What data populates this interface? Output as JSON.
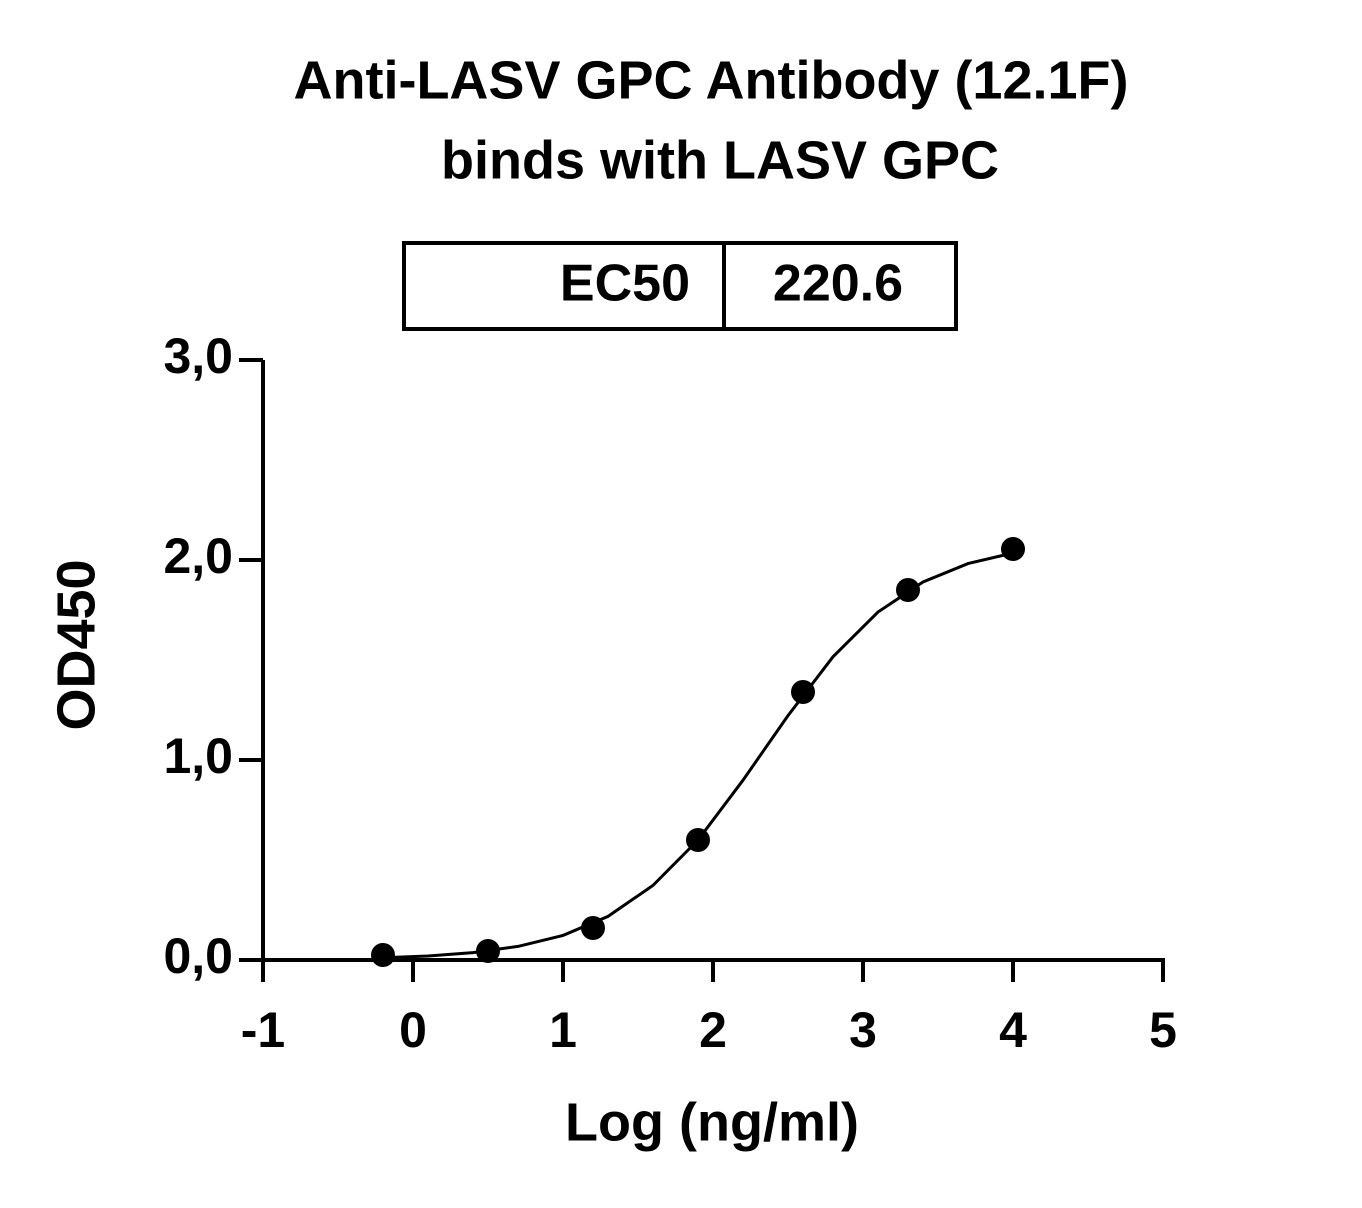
{
  "chart_data": {
    "type": "scatter",
    "title": [
      "Anti-LASV GPC Antibody (12.1F)",
      "binds with LASV GPC"
    ],
    "table": {
      "label": "EC50",
      "value": 220.6
    },
    "x_label": "Log (ng/ml)",
    "y_label": "OD450",
    "series": [
      {
        "kind": "points",
        "color": "#000000",
        "x": [
          -0.2,
          0.5,
          1.2,
          1.9,
          2.6,
          3.3,
          4.0
        ],
        "values": [
          0.025,
          0.045,
          0.16,
          0.6,
          1.34,
          1.85,
          2.055
        ]
      },
      {
        "kind": "fit",
        "color": "#000000",
        "x": [
          -0.2,
          0.1,
          0.4,
          0.7,
          1.0,
          1.3,
          1.6,
          1.9,
          2.2,
          2.5,
          2.8,
          3.1,
          3.4,
          3.7,
          4.0
        ],
        "values": [
          0.011,
          0.02,
          0.037,
          0.068,
          0.123,
          0.218,
          0.373,
          0.6,
          0.899,
          1.222,
          1.516,
          1.74,
          1.89,
          1.982,
          2.035
        ]
      }
    ],
    "xlim": [
      -1,
      5
    ],
    "xticks": [
      -1,
      0,
      1,
      2,
      3,
      4,
      5
    ],
    "ylim": [
      0,
      3
    ],
    "yticks": [
      {
        "value": 0,
        "label": "0,0"
      },
      {
        "value": 1,
        "label": "1,0"
      },
      {
        "value": 2,
        "label": "2,0"
      },
      {
        "value": 3,
        "label": "3,0"
      }
    ],
    "grid": false
  }
}
